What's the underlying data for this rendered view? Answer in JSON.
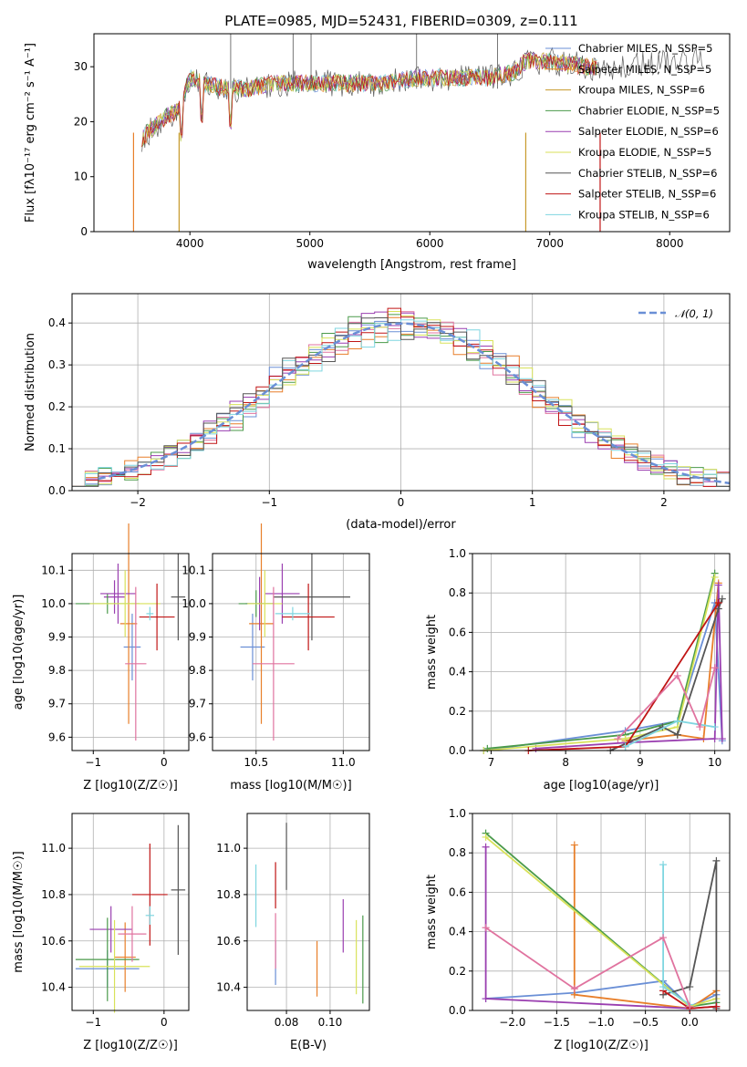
{
  "figure_title": "PLATE=0985, MJD=52431, FIBERID=0309, z=0.111",
  "series_colors": [
    "#6a8fd6",
    "#e87f2a",
    "#c79a2a",
    "#4a9a4a",
    "#9a3fb0",
    "#d8e25a",
    "#555555",
    "#c01515",
    "#7fd6e0"
  ],
  "chart_data": [
    {
      "type": "line",
      "xlabel": "wavelength [Angstrom, rest frame]",
      "ylabel": "Flux [fλ10⁻¹⁷ erg cm⁻² s⁻¹ A⁻¹]",
      "xlim": [
        3200,
        8500
      ],
      "ylim": [
        0,
        36
      ],
      "xticks": [
        4000,
        5000,
        6000,
        7000,
        8000
      ],
      "yticks": [
        0,
        10,
        20,
        30
      ],
      "legend_placement": "upper-right",
      "legend": [
        "Chabrier MILES, N_SSP=5",
        "Salpeter MILES, N_SSP=5",
        "Kroupa MILES, N_SSP=6",
        "Chabrier ELODIE, N_SSP=5",
        "Salpeter ELODIE, N_SSP=6",
        "Kroupa ELODIE, N_SSP=5",
        "Chabrier STELIB, N_SSP=6",
        "Salpeter STELIB, N_SSP=6",
        "Kroupa STELIB, N_SSP=6"
      ],
      "spectrum_anchor_points": {
        "x": [
          3600,
          3700,
          3800,
          3900,
          4000,
          4100,
          4300,
          4500,
          4700,
          5000,
          5300,
          5600,
          5900,
          6200,
          6500,
          6700,
          6800,
          7000,
          7300,
          7600,
          7900,
          8200,
          8300
        ],
        "y": [
          17,
          19,
          21,
          22,
          28,
          27,
          26,
          26,
          27,
          27,
          27,
          27,
          28,
          28,
          28,
          29,
          31,
          31,
          30,
          30,
          31,
          31,
          30
        ]
      },
      "grid": false
    },
    {
      "type": "histogram",
      "xlabel": "(data-model)/error",
      "ylabel": "Normed distribution",
      "xlim": [
        -2.5,
        2.5
      ],
      "ylim": [
        0,
        0.47
      ],
      "xticks": [
        -2,
        -1,
        0,
        1,
        2
      ],
      "yticks": [
        0.0,
        0.1,
        0.2,
        0.3,
        0.4
      ],
      "legend": [
        "𝒩(0, 1)"
      ],
      "legend_placement": "upper-right",
      "reference_curve": "gaussian mean 0 sigma 1",
      "grid": true
    },
    {
      "type": "scatter",
      "xlabel": "Z [log10(Z/Z☉)]",
      "ylabel": "age  [log10(age/yr)]",
      "xlim": [
        -1.3,
        0.35
      ],
      "ylim": [
        9.56,
        10.15
      ],
      "xticks": [
        -1,
        0
      ],
      "yticks": [
        9.6,
        9.7,
        9.8,
        9.9,
        10.0,
        10.1
      ],
      "points": [
        {
          "x": -0.45,
          "xerr": 0.12,
          "y": 9.87,
          "yerr": 0.1
        },
        {
          "x": -0.5,
          "xerr": 0.12,
          "y": 9.94,
          "yerr": 0.3
        },
        {
          "x": -0.7,
          "xerr": 0.15,
          "y": 10.02,
          "yerr": 0.05
        },
        {
          "x": -0.8,
          "xerr": 0.45,
          "y": 10.0,
          "yerr": 0.03
        },
        {
          "x": -0.65,
          "xerr": 0.25,
          "y": 10.03,
          "yerr": 0.09
        },
        {
          "x": -0.55,
          "xerr": 0.5,
          "y": 10.0,
          "yerr": 0.1
        },
        {
          "x": 0.2,
          "xerr": 0.1,
          "y": 10.02,
          "yerr": 0.13
        },
        {
          "x": -0.1,
          "xerr": 0.25,
          "y": 9.96,
          "yerr": 0.1
        },
        {
          "x": -0.2,
          "xerr": 0.05,
          "y": 9.97,
          "yerr": 0.02
        },
        {
          "x": -0.4,
          "xerr": 0.15,
          "y": 9.82,
          "yerr": 0.23
        }
      ],
      "grid": true
    },
    {
      "type": "scatter",
      "xlabel": "mass [log10(M/M☉)]",
      "ylabel": "",
      "xlim": [
        10.25,
        11.15
      ],
      "ylim": [
        9.56,
        10.15
      ],
      "xticks": [
        10.5,
        11.0
      ],
      "yticks": [
        9.6,
        9.7,
        9.8,
        9.9,
        10.0,
        10.1
      ],
      "points": [
        {
          "x": 10.48,
          "xerr": 0.07,
          "y": 9.87,
          "yerr": 0.1
        },
        {
          "x": 10.53,
          "xerr": 0.07,
          "y": 9.94,
          "yerr": 0.3
        },
        {
          "x": 10.52,
          "xerr": 0.08,
          "y": 10.0,
          "yerr": 0.08
        },
        {
          "x": 10.5,
          "xerr": 0.1,
          "y": 10.0,
          "yerr": 0.04
        },
        {
          "x": 10.65,
          "xerr": 0.1,
          "y": 10.03,
          "yerr": 0.09
        },
        {
          "x": 10.55,
          "xerr": 0.1,
          "y": 10.0,
          "yerr": 0.1
        },
        {
          "x": 10.82,
          "xerr": 0.22,
          "y": 10.02,
          "yerr": 0.13
        },
        {
          "x": 10.8,
          "xerr": 0.15,
          "y": 9.96,
          "yerr": 0.1
        },
        {
          "x": 10.71,
          "xerr": 0.1,
          "y": 9.97,
          "yerr": 0.02
        },
        {
          "x": 10.6,
          "xerr": 0.12,
          "y": 9.82,
          "yerr": 0.23
        }
      ],
      "grid": true
    },
    {
      "type": "line",
      "xlabel": "age  [log10(age/yr)]",
      "ylabel": "mass weight",
      "xlim": [
        6.75,
        10.2
      ],
      "ylim": [
        0,
        1.0
      ],
      "xticks": [
        7,
        8,
        9,
        10
      ],
      "yticks": [
        0.0,
        0.2,
        0.4,
        0.6,
        0.8,
        1.0
      ],
      "grid": true
    },
    {
      "type": "scatter",
      "xlabel": "Z [log10(Z/Z☉)]",
      "ylabel": "mass [log10(M/M☉)]",
      "xlim": [
        -1.3,
        0.35
      ],
      "ylim": [
        10.3,
        11.15
      ],
      "xticks": [
        -1,
        0
      ],
      "yticks": [
        10.4,
        10.6,
        10.8,
        11.0
      ],
      "grid": true
    },
    {
      "type": "scatter",
      "xlabel": "E(B-V)",
      "ylabel": "",
      "xlim": [
        0.062,
        0.118
      ],
      "ylim": [
        10.3,
        11.15
      ],
      "xticks": [
        0.08,
        0.1
      ],
      "yticks": [
        10.4,
        10.6,
        10.8,
        11.0
      ],
      "grid": true
    },
    {
      "type": "line",
      "xlabel": "Z [log10(Z/Z☉)]",
      "ylabel": "mass weight",
      "xlim": [
        -2.45,
        0.45
      ],
      "ylim": [
        0,
        1.0
      ],
      "xticks": [
        -2.0,
        -1.5,
        -1.0,
        -0.5,
        0.0
      ],
      "yticks": [
        0.0,
        0.2,
        0.4,
        0.6,
        0.8,
        1.0
      ],
      "grid": true
    }
  ]
}
